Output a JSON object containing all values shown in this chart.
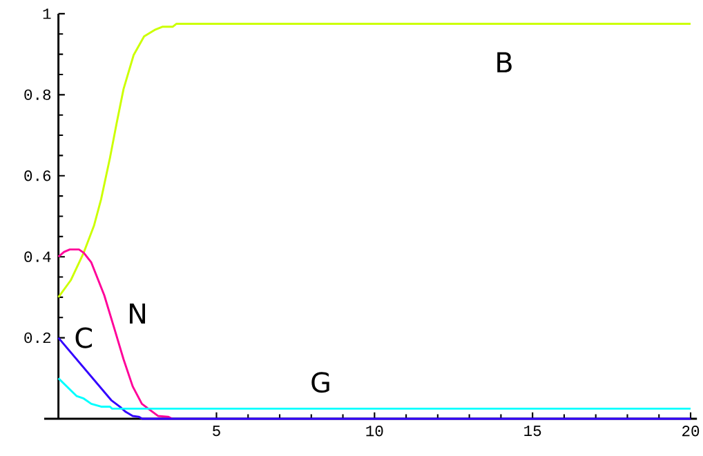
{
  "chart_data": {
    "type": "line",
    "xlim": [
      -0.45,
      20.2
    ],
    "ylim": [
      0,
      1
    ],
    "xticks": [
      5,
      10,
      15,
      20
    ],
    "yticks": [
      0.2,
      0.4,
      0.6,
      0.8,
      1
    ],
    "grid": false,
    "legend": false,
    "marker": "none",
    "line_style": "solid",
    "series": [
      {
        "name": "B",
        "color": "#ccff00",
        "x": [
          0,
          0.39,
          0.8,
          1.13,
          1.35,
          1.63,
          1.84,
          2.06,
          2.38,
          2.71,
          3.07,
          3.3,
          3.62,
          3.73,
          20
        ],
        "values": [
          0.3,
          0.342,
          0.41,
          0.478,
          0.542,
          0.644,
          0.729,
          0.814,
          0.898,
          0.944,
          0.961,
          0.968,
          0.968,
          0.975,
          0.975
        ]
      },
      {
        "name": "N",
        "color": "#ff0099",
        "x": [
          0,
          0.18,
          0.36,
          0.65,
          0.8,
          1.04,
          1.45,
          1.78,
          2.06,
          2.35,
          2.64,
          2.93,
          3.15,
          3.47,
          3.6
        ],
        "values": [
          0.4,
          0.412,
          0.418,
          0.418,
          0.41,
          0.386,
          0.305,
          0.22,
          0.147,
          0.08,
          0.037,
          0.02,
          0.007,
          0.005,
          0
        ]
      },
      {
        "name": "C",
        "color": "#3300ff",
        "x": [
          0,
          1.67,
          1.96,
          2.13,
          2.35,
          2.54,
          2.65,
          20
        ],
        "values": [
          0.2,
          0.046,
          0.029,
          0.017,
          0.007,
          0.005,
          0,
          0
        ]
      },
      {
        "name": "G",
        "color": "#00ffff",
        "x": [
          0,
          0.58,
          0.8,
          1.04,
          1.35,
          1.63,
          1.7,
          20
        ],
        "values": [
          0.1,
          0.056,
          0.05,
          0.037,
          0.03,
          0.03,
          0.025,
          0.025
        ]
      }
    ]
  }
}
